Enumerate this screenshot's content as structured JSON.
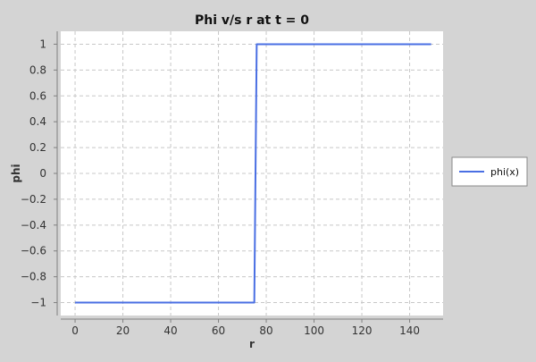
{
  "chart_data": {
    "type": "line",
    "title": "Phi v/s r at t = 0",
    "xlabel": "r",
    "ylabel": "phi",
    "xlim": [
      -6,
      154
    ],
    "ylim": [
      -1.1,
      1.1
    ],
    "x_ticks": [
      0,
      20,
      40,
      60,
      80,
      100,
      120,
      140
    ],
    "x_tick_labels": [
      "0",
      "20",
      "40",
      "60",
      "80",
      "100",
      "120",
      "140"
    ],
    "y_ticks": [
      1,
      0.8,
      0.6,
      0.4,
      0.2,
      0,
      -0.2,
      -0.4,
      -0.6,
      -0.8,
      -1
    ],
    "y_tick_labels": [
      "1",
      "0.8",
      "0.6",
      "0.4",
      "0.2",
      "0",
      "−0.2",
      "−0.4",
      "−0.6",
      "−0.8",
      "−1"
    ],
    "grid": true,
    "legend_position": "right",
    "series": [
      {
        "name": "phi(x)",
        "color": "#4a6fe3",
        "x": [
          0,
          75,
          76,
          149
        ],
        "y": [
          -1,
          -1,
          1,
          1
        ]
      }
    ]
  }
}
